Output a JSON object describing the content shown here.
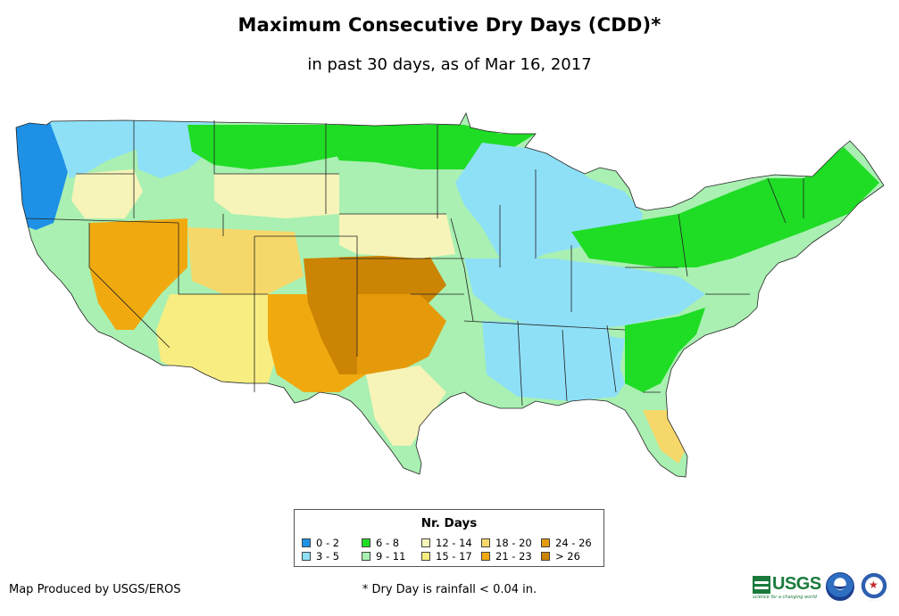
{
  "title": "Maximum Consecutive Dry Days (CDD)*",
  "subtitle": "in past 30 days, as of Mar 16, 2017",
  "legend": {
    "title": "Nr. Days",
    "items": [
      {
        "label": "0 - 2",
        "color": "#1e90e6"
      },
      {
        "label": "3 - 5",
        "color": "#8ee0f7"
      },
      {
        "label": "6 - 8",
        "color": "#1fdc25"
      },
      {
        "label": "9 - 11",
        "color": "#a9f0b2"
      },
      {
        "label": "12 - 14",
        "color": "#f6f4b8"
      },
      {
        "label": "15 - 17",
        "color": "#f8ed80"
      },
      {
        "label": "18 - 20",
        "color": "#f6d86a"
      },
      {
        "label": "21 - 23",
        "color": "#f0aa10"
      },
      {
        "label": "24 - 26",
        "color": "#e59a0c"
      },
      {
        "label": "> 26",
        "color": "#cc8404"
      }
    ]
  },
  "credit": "Map Produced by USGS/EROS",
  "footnote": "* Dry Day is rainfall < 0.04 in.",
  "logos": {
    "usgs": "USGS",
    "usgs_tagline": "science for a changing world",
    "noaa_icon": "noaa-logo-icon",
    "nws_icon": "nws-logo-icon"
  }
}
